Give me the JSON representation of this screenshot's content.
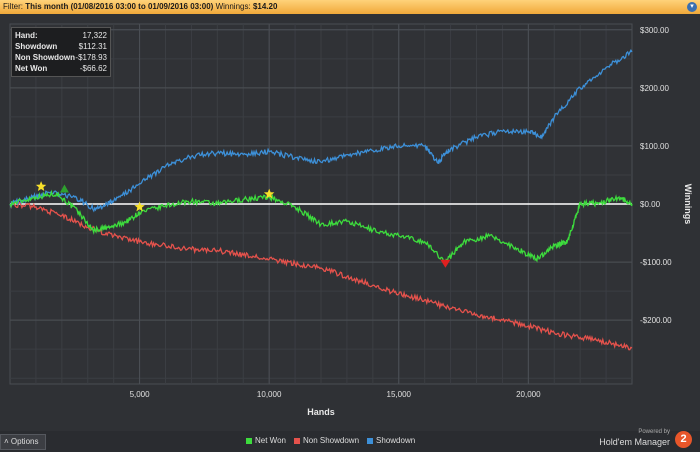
{
  "filter": {
    "label": "Filter:",
    "value": "This month (01/08/2016 03:00 to 01/09/2016 03:00)",
    "winnings_label": "Winnings:",
    "winnings_value": "$14.20",
    "toggle_icon": "chevron-down-icon"
  },
  "stats": [
    {
      "label": "Hand:",
      "value": "17,322"
    },
    {
      "label": "Showdown",
      "value": "$112.31"
    },
    {
      "label": "Non Showdown",
      "value": "-$178.93"
    },
    {
      "label": "Net Won",
      "value": "-$66.62"
    }
  ],
  "options": {
    "label": "Options",
    "icon": "caret-up-icon"
  },
  "brand": {
    "powered": "Powered by",
    "name": "Hold'em Manager",
    "logo": "2"
  },
  "chart_data": {
    "type": "line",
    "xlabel": "Hands",
    "ylabel": "Winnings",
    "xlim": [
      0,
      24000
    ],
    "ylim": [
      -310,
      310
    ],
    "x_ticks": [
      5000,
      10000,
      15000,
      20000
    ],
    "x_tick_labels": [
      "5,000",
      "10,000",
      "15,000",
      "20,000"
    ],
    "y_ticks": [
      300,
      200,
      100,
      0,
      -100,
      -200
    ],
    "y_tick_labels": [
      "$300.00",
      "$200.00",
      "$100.00",
      "$0.00",
      "-$100.00",
      "-$200.00"
    ],
    "grid": true,
    "legend_position": "bottom",
    "series": [
      {
        "name": "Net Won",
        "color": "#3ddc3d",
        "points": [
          [
            0,
            0
          ],
          [
            1000,
            12
          ],
          [
            1800,
            18
          ],
          [
            2600,
            -12
          ],
          [
            3200,
            -45
          ],
          [
            3900,
            -40
          ],
          [
            4500,
            -30
          ],
          [
            5000,
            -15
          ],
          [
            6000,
            -3
          ],
          [
            7000,
            5
          ],
          [
            8000,
            0
          ],
          [
            9000,
            8
          ],
          [
            10000,
            12
          ],
          [
            11000,
            -5
          ],
          [
            12000,
            -35
          ],
          [
            13000,
            -30
          ],
          [
            14000,
            -45
          ],
          [
            15000,
            -55
          ],
          [
            16000,
            -65
          ],
          [
            16800,
            -100
          ],
          [
            17500,
            -65
          ],
          [
            18500,
            -55
          ],
          [
            19500,
            -75
          ],
          [
            20300,
            -95
          ],
          [
            21000,
            -72
          ],
          [
            21500,
            -65
          ],
          [
            22000,
            0
          ],
          [
            22800,
            2
          ],
          [
            23500,
            12
          ],
          [
            24000,
            0
          ]
        ]
      },
      {
        "name": "Non Showdown",
        "color": "#e5524c",
        "points": [
          [
            0,
            0
          ],
          [
            1000,
            -5
          ],
          [
            2000,
            -20
          ],
          [
            3000,
            -40
          ],
          [
            4000,
            -55
          ],
          [
            5000,
            -65
          ],
          [
            6000,
            -72
          ],
          [
            7000,
            -78
          ],
          [
            8000,
            -80
          ],
          [
            9000,
            -88
          ],
          [
            10000,
            -95
          ],
          [
            11000,
            -103
          ],
          [
            12000,
            -110
          ],
          [
            13000,
            -125
          ],
          [
            14000,
            -140
          ],
          [
            15000,
            -155
          ],
          [
            16000,
            -165
          ],
          [
            17000,
            -180
          ],
          [
            18000,
            -190
          ],
          [
            19000,
            -200
          ],
          [
            20000,
            -210
          ],
          [
            21000,
            -222
          ],
          [
            22000,
            -230
          ],
          [
            23000,
            -238
          ],
          [
            24000,
            -248
          ]
        ]
      },
      {
        "name": "Showdown",
        "color": "#3d90d8",
        "points": [
          [
            0,
            0
          ],
          [
            800,
            10
          ],
          [
            1500,
            20
          ],
          [
            2500,
            12
          ],
          [
            3300,
            -10
          ],
          [
            4000,
            5
          ],
          [
            5000,
            35
          ],
          [
            6000,
            65
          ],
          [
            7000,
            82
          ],
          [
            8000,
            88
          ],
          [
            9000,
            85
          ],
          [
            10000,
            90
          ],
          [
            11000,
            80
          ],
          [
            12000,
            72
          ],
          [
            13000,
            85
          ],
          [
            14000,
            92
          ],
          [
            15000,
            100
          ],
          [
            16000,
            100
          ],
          [
            16500,
            72
          ],
          [
            17000,
            95
          ],
          [
            18000,
            115
          ],
          [
            19000,
            125
          ],
          [
            20000,
            125
          ],
          [
            20500,
            115
          ],
          [
            21000,
            150
          ],
          [
            22000,
            200
          ],
          [
            23000,
            235
          ],
          [
            24000,
            262
          ]
        ]
      }
    ],
    "markers": [
      {
        "type": "star",
        "color": "#f7e02a",
        "x": 1200,
        "y": 30
      },
      {
        "type": "star",
        "color": "#f7e02a",
        "x": 5000,
        "y": -5
      },
      {
        "type": "star",
        "color": "#f7e02a",
        "x": 10000,
        "y": 17
      },
      {
        "type": "triangle-up",
        "color": "#2ea02e",
        "x": 2100,
        "y": 25
      },
      {
        "type": "triangle-down",
        "color": "#e02020",
        "x": 16800,
        "y": -103
      }
    ]
  }
}
